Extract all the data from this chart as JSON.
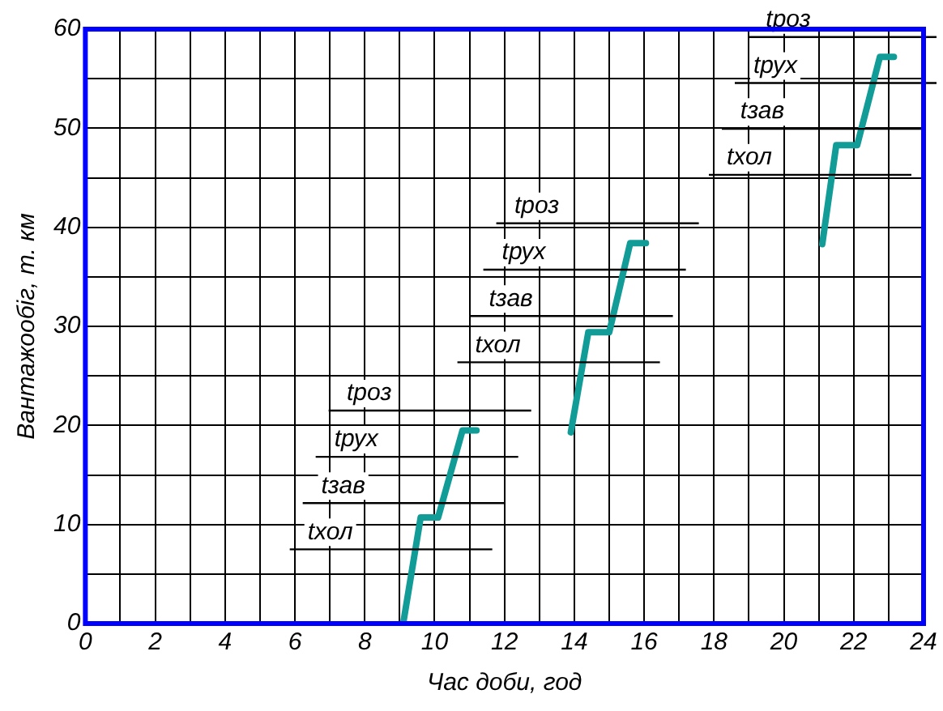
{
  "chart_data": {
    "type": "line",
    "xlabel": "Час доби, год",
    "ylabel": "Вантажообіг, т. км",
    "xlim": [
      0,
      24
    ],
    "ylim": [
      0,
      60
    ],
    "xticks": [
      0,
      {
        "value": 1,
        "label": null
      },
      2,
      {
        "value": 3,
        "label": null
      },
      4,
      {
        "value": 5,
        "label": null
      },
      6,
      {
        "value": 7,
        "label": null
      },
      8,
      {
        "value": 9,
        "label": null
      },
      10,
      {
        "value": 11,
        "label": null
      },
      12,
      {
        "value": 13,
        "label": null
      },
      14,
      {
        "value": 15,
        "label": null
      },
      16,
      {
        "value": 17,
        "label": null
      },
      18,
      {
        "value": 19,
        "label": null
      },
      20,
      {
        "value": 21,
        "label": null
      },
      22,
      {
        "value": 23,
        "label": null
      },
      24
    ],
    "yticks": [
      0,
      {
        "value": 5,
        "label": null
      },
      10,
      {
        "value": 15,
        "label": null
      },
      20,
      {
        "value": 25,
        "label": null
      },
      30,
      {
        "value": 35,
        "label": null
      },
      40,
      {
        "value": 45,
        "label": null
      },
      50,
      {
        "value": 55,
        "label": null
      },
      60
    ],
    "grid": true,
    "legend": false,
    "marker": "none",
    "line_style": "solid",
    "series": [
      {
        "color": "#129c98",
        "x": [
          9.1,
          9.6,
          10.1,
          10.8,
          11.2,
          null,
          13.9,
          14.4,
          15.0,
          15.6,
          16.05,
          null,
          21.1,
          21.5,
          22.1,
          22.75,
          23.15
        ],
        "values": [
          0,
          10.7,
          10.7,
          19.5,
          19.5,
          null,
          19.3,
          29.4,
          29.4,
          38.4,
          38.4,
          null,
          38.3,
          48.3,
          48.3,
          57.2,
          57.2
        ]
      }
    ],
    "annotations": [
      "tхол",
      "tзав",
      "tрух",
      "tроз",
      "tхол",
      "tзав",
      "tрух",
      "tроз",
      "tхол",
      "tзав",
      "tрух",
      "tроз"
    ]
  }
}
